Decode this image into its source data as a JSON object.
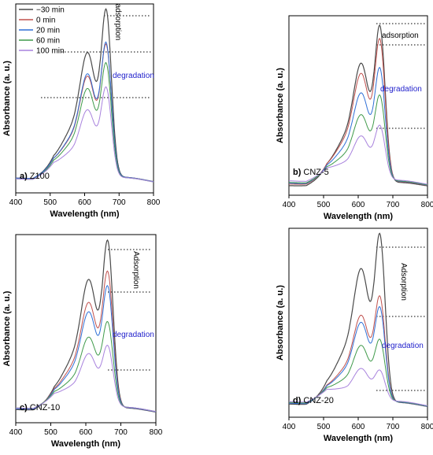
{
  "colors": {
    "series": [
      "#4a4a4a",
      "#c0504d",
      "#2e6fd6",
      "#3f9a4a",
      "#a882dd"
    ],
    "degradation_text": "#2222cc",
    "axis": "#000000",
    "guide": "#000000"
  },
  "legend": [
    "−30 min",
    "0 min",
    "20 min",
    "60 min",
    "100 min"
  ],
  "chart_data": [
    {
      "type": "line",
      "panel_label": "a)",
      "sample": "Z100",
      "xlabel": "Wavelength (nm)",
      "ylabel": "Absorbance (a. u.)",
      "xlim": [
        400,
        800
      ],
      "xticks": [
        "400",
        "500",
        "600",
        "700",
        "800"
      ],
      "annotations": {
        "adsorption": "adsorption",
        "degradation": "degradation"
      },
      "adsorption_rotated": true,
      "series": [
        {
          "name": "−30 min",
          "peak_660": 0.93,
          "shoulder_610": 0.54,
          "baseline_400": 0.05
        },
        {
          "name": "0 min",
          "peak_660": 0.73,
          "shoulder_610": 0.44,
          "baseline_400": 0.05
        },
        {
          "name": "20 min",
          "peak_660": 0.74,
          "shoulder_610": 0.45,
          "baseline_400": 0.05
        },
        {
          "name": "60 min",
          "peak_660": 0.63,
          "shoulder_610": 0.39,
          "baseline_400": 0.045
        },
        {
          "name": "100 min",
          "peak_660": 0.5,
          "shoulder_610": 0.3,
          "baseline_400": 0.045
        }
      ]
    },
    {
      "type": "line",
      "panel_label": "b)",
      "sample": "CNZ-5",
      "xlabel": "Wavelength (nm)",
      "ylabel": "Absorbance (a. u.)",
      "xlim": [
        400,
        800
      ],
      "xticks": [
        "400",
        "500",
        "600",
        "700",
        "800"
      ],
      "annotations": {
        "adsorption": "adsorption",
        "degradation": "degradation"
      },
      "adsorption_rotated": false,
      "series": [
        {
          "name": "−30 min",
          "peak_660": 0.92,
          "shoulder_610": 0.55,
          "baseline_400": 0.02
        },
        {
          "name": "0 min",
          "peak_660": 0.83,
          "shoulder_610": 0.5,
          "baseline_400": 0.03
        },
        {
          "name": "20 min",
          "peak_660": 0.66,
          "shoulder_610": 0.41,
          "baseline_400": 0.035
        },
        {
          "name": "60 min",
          "peak_660": 0.5,
          "shoulder_610": 0.31,
          "baseline_400": 0.04
        },
        {
          "name": "100 min",
          "peak_660": 0.32,
          "shoulder_610": 0.21,
          "baseline_400": 0.05
        }
      ]
    },
    {
      "type": "line",
      "panel_label": "c)",
      "sample": "CNZ-10",
      "xlabel": "Wavelength (nm)",
      "ylabel": "Absorbance (a. u.)",
      "xlim": [
        400,
        800
      ],
      "xticks": [
        "400",
        "500",
        "600",
        "700",
        "800"
      ],
      "annotations": {
        "adsorption": "Adsorption",
        "degradation": "degradation"
      },
      "adsorption_rotated": true,
      "series": [
        {
          "name": "−30 min",
          "peak_660": 0.93,
          "shoulder_610": 0.56,
          "baseline_400": 0.04
        },
        {
          "name": "0 min",
          "peak_660": 0.75,
          "shoulder_610": 0.46,
          "baseline_400": 0.045
        },
        {
          "name": "20 min",
          "peak_660": 0.67,
          "shoulder_610": 0.42,
          "baseline_400": 0.045
        },
        {
          "name": "60 min",
          "peak_660": 0.47,
          "shoulder_610": 0.31,
          "baseline_400": 0.05
        },
        {
          "name": "100 min",
          "peak_660": 0.34,
          "shoulder_610": 0.24,
          "baseline_400": 0.05
        }
      ]
    },
    {
      "type": "line",
      "panel_label": "d)",
      "sample": "CNZ-20",
      "xlabel": "Wavelength (nm)",
      "ylabel": "Absorbance (a. u.)",
      "xlim": [
        400,
        800
      ],
      "xticks": [
        "400",
        "500",
        "600",
        "700",
        "800"
      ],
      "annotations": {
        "adsorption": "Adsorption",
        "degradation": "degradation"
      },
      "adsorption_rotated": true,
      "series": [
        {
          "name": "−30 min",
          "peak_660": 0.93,
          "shoulder_610": 0.58,
          "baseline_400": 0.04
        },
        {
          "name": "0 min",
          "peak_660": 0.58,
          "shoulder_610": 0.38,
          "baseline_400": 0.045
        },
        {
          "name": "20 min",
          "peak_660": 0.52,
          "shoulder_610": 0.35,
          "baseline_400": 0.045
        },
        {
          "name": "60 min",
          "peak_660": 0.34,
          "shoulder_610": 0.25,
          "baseline_400": 0.05
        },
        {
          "name": "100 min",
          "peak_660": 0.17,
          "shoulder_610": 0.15,
          "baseline_400": 0.055
        }
      ]
    }
  ]
}
